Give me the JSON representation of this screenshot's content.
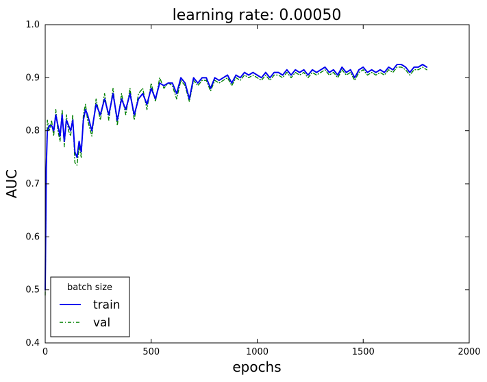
{
  "chart_data": {
    "type": "line",
    "title": "learning rate: 0.00050",
    "xlabel": "epochs",
    "ylabel": "AUC",
    "xlim": [
      0,
      2000
    ],
    "ylim": [
      0.4,
      1.0
    ],
    "xticks": [
      0,
      500,
      1000,
      1500,
      2000
    ],
    "xtick_labels": [
      "0",
      "500",
      "1000",
      "1500",
      "2000"
    ],
    "yticks": [
      0.4,
      0.5,
      0.6,
      0.7,
      0.8,
      0.9,
      1.0
    ],
    "ytick_labels": [
      "0.4",
      "0.5",
      "0.6",
      "0.7",
      "0.8",
      "0.9",
      "1.0"
    ],
    "grid": false,
    "legend": {
      "title": "batch size",
      "location": "lower-left"
    },
    "series": [
      {
        "name": "train",
        "color": "#0000ee",
        "line_style": "solid",
        "x": [
          0,
          5,
          10,
          20,
          30,
          40,
          50,
          60,
          70,
          80,
          90,
          100,
          110,
          120,
          130,
          140,
          150,
          160,
          170,
          180,
          190,
          200,
          220,
          240,
          260,
          280,
          300,
          320,
          340,
          360,
          380,
          400,
          420,
          440,
          460,
          480,
          500,
          520,
          540,
          560,
          580,
          600,
          620,
          640,
          660,
          680,
          700,
          720,
          740,
          760,
          780,
          800,
          820,
          840,
          860,
          880,
          900,
          920,
          940,
          960,
          980,
          1000,
          1020,
          1040,
          1060,
          1080,
          1100,
          1120,
          1140,
          1160,
          1180,
          1200,
          1220,
          1240,
          1260,
          1280,
          1300,
          1320,
          1340,
          1360,
          1380,
          1400,
          1420,
          1440,
          1460,
          1480,
          1500,
          1520,
          1540,
          1560,
          1580,
          1600,
          1620,
          1640,
          1660,
          1680,
          1700,
          1720,
          1740,
          1760,
          1780,
          1800
        ],
        "y": [
          0.5,
          0.73,
          0.8,
          0.81,
          0.81,
          0.8,
          0.83,
          0.81,
          0.79,
          0.83,
          0.78,
          0.82,
          0.81,
          0.8,
          0.82,
          0.76,
          0.75,
          0.78,
          0.76,
          0.82,
          0.84,
          0.83,
          0.8,
          0.85,
          0.83,
          0.86,
          0.83,
          0.87,
          0.82,
          0.86,
          0.84,
          0.87,
          0.83,
          0.86,
          0.87,
          0.85,
          0.88,
          0.86,
          0.89,
          0.885,
          0.89,
          0.89,
          0.87,
          0.9,
          0.89,
          0.86,
          0.9,
          0.89,
          0.9,
          0.9,
          0.88,
          0.9,
          0.895,
          0.9,
          0.905,
          0.89,
          0.905,
          0.9,
          0.91,
          0.905,
          0.91,
          0.905,
          0.9,
          0.91,
          0.9,
          0.91,
          0.91,
          0.905,
          0.915,
          0.905,
          0.915,
          0.91,
          0.915,
          0.905,
          0.915,
          0.91,
          0.915,
          0.92,
          0.91,
          0.915,
          0.905,
          0.92,
          0.91,
          0.915,
          0.9,
          0.915,
          0.92,
          0.91,
          0.915,
          0.91,
          0.915,
          0.91,
          0.92,
          0.915,
          0.925,
          0.925,
          0.92,
          0.91,
          0.92,
          0.92,
          0.925,
          0.92
        ]
      },
      {
        "name": "val",
        "color": "#008000",
        "line_style": "dash-dot",
        "x": [
          0,
          5,
          10,
          20,
          30,
          40,
          50,
          60,
          70,
          80,
          90,
          100,
          110,
          120,
          130,
          140,
          150,
          160,
          170,
          180,
          190,
          200,
          220,
          240,
          260,
          280,
          300,
          320,
          340,
          360,
          380,
          400,
          420,
          440,
          460,
          480,
          500,
          520,
          540,
          560,
          580,
          600,
          620,
          640,
          660,
          680,
          700,
          720,
          740,
          760,
          780,
          800,
          820,
          840,
          860,
          880,
          900,
          920,
          940,
          960,
          980,
          1000,
          1020,
          1040,
          1060,
          1080,
          1100,
          1120,
          1140,
          1160,
          1180,
          1200,
          1220,
          1240,
          1260,
          1280,
          1300,
          1320,
          1340,
          1360,
          1380,
          1400,
          1420,
          1440,
          1460,
          1480,
          1500,
          1520,
          1540,
          1560,
          1580,
          1600,
          1620,
          1640,
          1660,
          1680,
          1700,
          1720,
          1740,
          1760,
          1780,
          1800
        ],
        "y": [
          0.49,
          0.72,
          0.82,
          0.8,
          0.82,
          0.79,
          0.84,
          0.8,
          0.78,
          0.84,
          0.77,
          0.83,
          0.8,
          0.79,
          0.83,
          0.74,
          0.735,
          0.77,
          0.75,
          0.83,
          0.85,
          0.82,
          0.79,
          0.86,
          0.82,
          0.87,
          0.82,
          0.88,
          0.81,
          0.87,
          0.83,
          0.88,
          0.82,
          0.87,
          0.88,
          0.84,
          0.89,
          0.855,
          0.9,
          0.88,
          0.89,
          0.885,
          0.86,
          0.895,
          0.885,
          0.855,
          0.895,
          0.885,
          0.895,
          0.895,
          0.875,
          0.895,
          0.89,
          0.895,
          0.9,
          0.885,
          0.9,
          0.895,
          0.905,
          0.9,
          0.905,
          0.9,
          0.895,
          0.905,
          0.895,
          0.905,
          0.905,
          0.9,
          0.91,
          0.9,
          0.91,
          0.905,
          0.91,
          0.9,
          0.91,
          0.905,
          0.91,
          0.915,
          0.905,
          0.91,
          0.9,
          0.915,
          0.905,
          0.91,
          0.895,
          0.91,
          0.915,
          0.905,
          0.91,
          0.905,
          0.91,
          0.905,
          0.915,
          0.91,
          0.92,
          0.92,
          0.915,
          0.905,
          0.915,
          0.915,
          0.92,
          0.915
        ]
      }
    ]
  }
}
